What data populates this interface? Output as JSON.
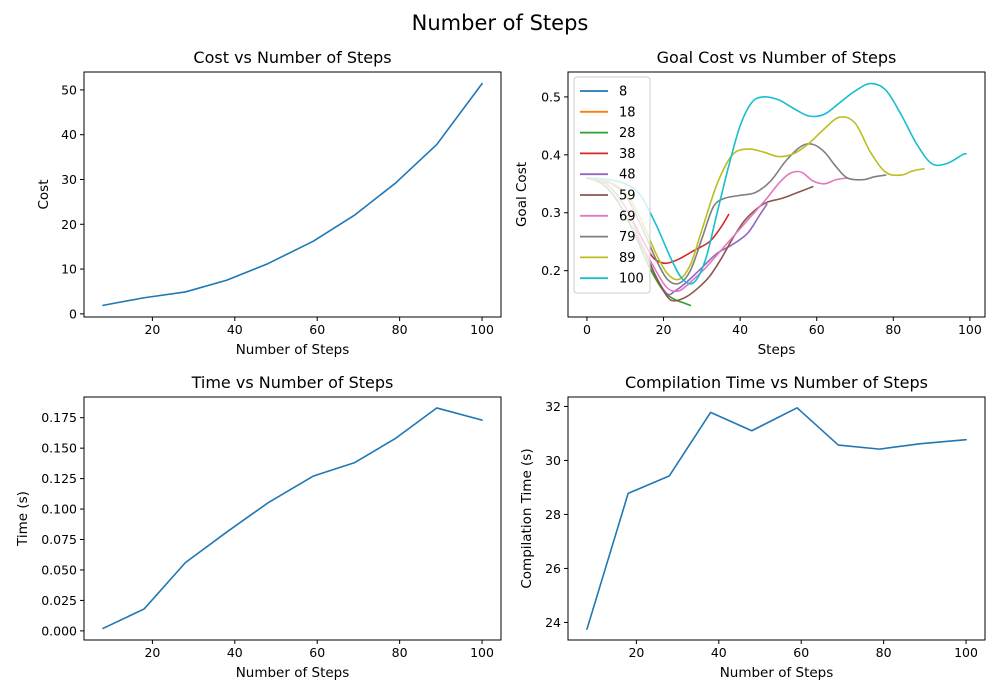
{
  "figure": {
    "title": "Number of Steps"
  },
  "chart_data": [
    {
      "id": "cost",
      "type": "line",
      "title": "Cost vs Number of Steps",
      "xlabel": "Number of Steps",
      "ylabel": "Cost",
      "xlim": [
        3.4,
        104.6
      ],
      "ylim": [
        -0.7,
        54
      ],
      "xticks": [
        20,
        40,
        60,
        80,
        100
      ],
      "yticks": [
        0,
        10,
        20,
        30,
        40,
        50
      ],
      "tick_format": "int",
      "color": "#1f77b4",
      "x": [
        8,
        18,
        28,
        38,
        48,
        59,
        69,
        79,
        89,
        100
      ],
      "y": [
        1.9,
        3.6,
        4.9,
        7.5,
        11.2,
        16.2,
        22.0,
        29.2,
        37.8,
        51.4
      ]
    },
    {
      "id": "goal",
      "type": "line",
      "title": "Goal Cost vs Number of Steps",
      "xlabel": "Steps",
      "ylabel": "Goal Cost",
      "xlim": [
        -4.95,
        103.95
      ],
      "ylim": [
        0.12,
        0.543
      ],
      "xticks": [
        0,
        20,
        40,
        60,
        80,
        100
      ],
      "yticks": [
        0.2,
        0.3,
        0.4,
        0.5
      ],
      "tick_format": "1dp",
      "legend_position": "upper left",
      "series": [
        {
          "name": "8",
          "color": "#1f77b4",
          "x": [
            0,
            7
          ],
          "y": [
            0.36,
            0.35
          ]
        },
        {
          "name": "18",
          "color": "#ff7f0e",
          "x": [
            0,
            4,
            8,
            12,
            17
          ],
          "y": [
            0.36,
            0.35,
            0.32,
            0.27,
            0.21
          ]
        },
        {
          "name": "28",
          "color": "#2ca02c",
          "x": [
            0,
            4,
            8,
            12,
            16,
            20,
            23,
            25,
            27
          ],
          "y": [
            0.36,
            0.35,
            0.32,
            0.27,
            0.21,
            0.165,
            0.15,
            0.145,
            0.14
          ]
        },
        {
          "name": "38",
          "color": "#d62728",
          "x": [
            0,
            5,
            10,
            14,
            17,
            19,
            21,
            24,
            28,
            32,
            35,
            37
          ],
          "y": [
            0.36,
            0.35,
            0.31,
            0.26,
            0.225,
            0.215,
            0.213,
            0.22,
            0.235,
            0.25,
            0.275,
            0.297
          ]
        },
        {
          "name": "48",
          "color": "#9467bd",
          "x": [
            0,
            5,
            10,
            14,
            18,
            21,
            23,
            26,
            30,
            34,
            38,
            42,
            45,
            47
          ],
          "y": [
            0.36,
            0.35,
            0.31,
            0.25,
            0.19,
            0.16,
            0.165,
            0.18,
            0.205,
            0.23,
            0.245,
            0.265,
            0.295,
            0.315
          ]
        },
        {
          "name": "59",
          "color": "#8c564b",
          "x": [
            0,
            5,
            10,
            14,
            18,
            21,
            23,
            26,
            29,
            32,
            35,
            38,
            41,
            44,
            47,
            51,
            55,
            59
          ],
          "y": [
            0.36,
            0.35,
            0.31,
            0.25,
            0.19,
            0.155,
            0.148,
            0.155,
            0.17,
            0.19,
            0.22,
            0.255,
            0.285,
            0.305,
            0.318,
            0.325,
            0.335,
            0.345
          ]
        },
        {
          "name": "69",
          "color": "#e377c2",
          "x": [
            0,
            5,
            10,
            14,
            18,
            21,
            24,
            27,
            31,
            35,
            39,
            43,
            47,
            50,
            53,
            56,
            59,
            62,
            65,
            68
          ],
          "y": [
            0.36,
            0.35,
            0.31,
            0.25,
            0.2,
            0.17,
            0.165,
            0.18,
            0.205,
            0.235,
            0.265,
            0.295,
            0.325,
            0.35,
            0.368,
            0.37,
            0.355,
            0.35,
            0.357,
            0.36
          ]
        },
        {
          "name": "79",
          "color": "#7f7f7f",
          "x": [
            0,
            5,
            10,
            14,
            18,
            21,
            24,
            27,
            30,
            33,
            36,
            40,
            44,
            48,
            52,
            56,
            59,
            62,
            65,
            68,
            72,
            75,
            78
          ],
          "y": [
            0.36,
            0.355,
            0.33,
            0.28,
            0.22,
            0.185,
            0.178,
            0.2,
            0.255,
            0.31,
            0.325,
            0.33,
            0.335,
            0.355,
            0.39,
            0.415,
            0.418,
            0.405,
            0.38,
            0.36,
            0.357,
            0.362,
            0.365
          ]
        },
        {
          "name": "89",
          "color": "#bcbd22",
          "x": [
            0,
            5,
            10,
            14,
            18,
            21,
            24,
            27,
            30,
            34,
            38,
            42,
            46,
            50,
            54,
            58,
            62,
            66,
            70,
            74,
            78,
            82,
            85,
            88
          ],
          "y": [
            0.36,
            0.355,
            0.335,
            0.29,
            0.23,
            0.195,
            0.185,
            0.21,
            0.27,
            0.35,
            0.4,
            0.41,
            0.405,
            0.397,
            0.402,
            0.42,
            0.445,
            0.465,
            0.455,
            0.405,
            0.37,
            0.365,
            0.372,
            0.376
          ]
        },
        {
          "name": "100",
          "color": "#17becf",
          "x": [
            0,
            5,
            10,
            14,
            18,
            22,
            25,
            28,
            31,
            34,
            37,
            40,
            43,
            46,
            50,
            54,
            58,
            62,
            66,
            70,
            74,
            78,
            82,
            86,
            90,
            94,
            98,
            99
          ],
          "y": [
            0.36,
            0.358,
            0.35,
            0.33,
            0.28,
            0.22,
            0.185,
            0.18,
            0.22,
            0.3,
            0.38,
            0.45,
            0.49,
            0.5,
            0.495,
            0.48,
            0.467,
            0.47,
            0.49,
            0.51,
            0.523,
            0.512,
            0.47,
            0.42,
            0.385,
            0.385,
            0.4,
            0.402
          ]
        }
      ]
    },
    {
      "id": "time",
      "type": "line",
      "title": "Time vs Number of Steps",
      "xlabel": "Number of Steps",
      "ylabel": "Time (s)",
      "xlim": [
        3.4,
        104.6
      ],
      "ylim": [
        -0.0075,
        0.192
      ],
      "xticks": [
        20,
        40,
        60,
        80,
        100
      ],
      "yticks": [
        0.0,
        0.025,
        0.05,
        0.075,
        0.1,
        0.125,
        0.15,
        0.175
      ],
      "tick_format": "3dp",
      "color": "#1f77b4",
      "x": [
        8,
        18,
        28,
        38,
        48,
        59,
        69,
        79,
        89,
        100
      ],
      "y": [
        0.002,
        0.018,
        0.056,
        0.081,
        0.105,
        0.127,
        0.138,
        0.158,
        0.183,
        0.173
      ]
    },
    {
      "id": "compile",
      "type": "line",
      "title": "Compilation Time vs Number of Steps",
      "xlabel": "Number of Steps",
      "ylabel": "Compilation Time (s)",
      "xlim": [
        3.4,
        104.6
      ],
      "ylim": [
        23.35,
        32.35
      ],
      "xticks": [
        20,
        40,
        60,
        80,
        100
      ],
      "yticks": [
        24,
        26,
        28,
        30,
        32
      ],
      "tick_format": "int",
      "color": "#1f77b4",
      "x": [
        8,
        18,
        28,
        38,
        48,
        59,
        69,
        79,
        89,
        100
      ],
      "y": [
        23.75,
        28.78,
        29.43,
        31.78,
        31.1,
        31.95,
        30.57,
        30.42,
        30.62,
        30.77
      ]
    }
  ]
}
